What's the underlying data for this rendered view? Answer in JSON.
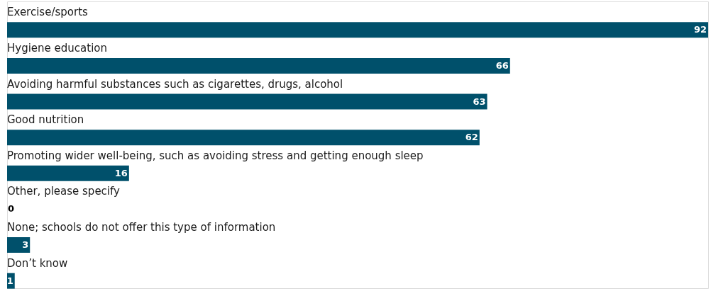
{
  "chart_data": {
    "type": "bar",
    "orientation": "horizontal",
    "data_labels": true,
    "categories": [
      "Exercise/sports",
      "Hygiene education",
      "Avoiding harmful substances such as cigarettes, drugs, alcohol",
      "Good nutrition",
      "Promoting wider well-being, such as avoiding stress and getting enough sleep",
      "Other, please specify",
      "None; schools do not offer this type of information",
      "Don’t know"
    ],
    "values": [
      92,
      66,
      63,
      62,
      16,
      0,
      3,
      1
    ],
    "color": "#00506b"
  }
}
